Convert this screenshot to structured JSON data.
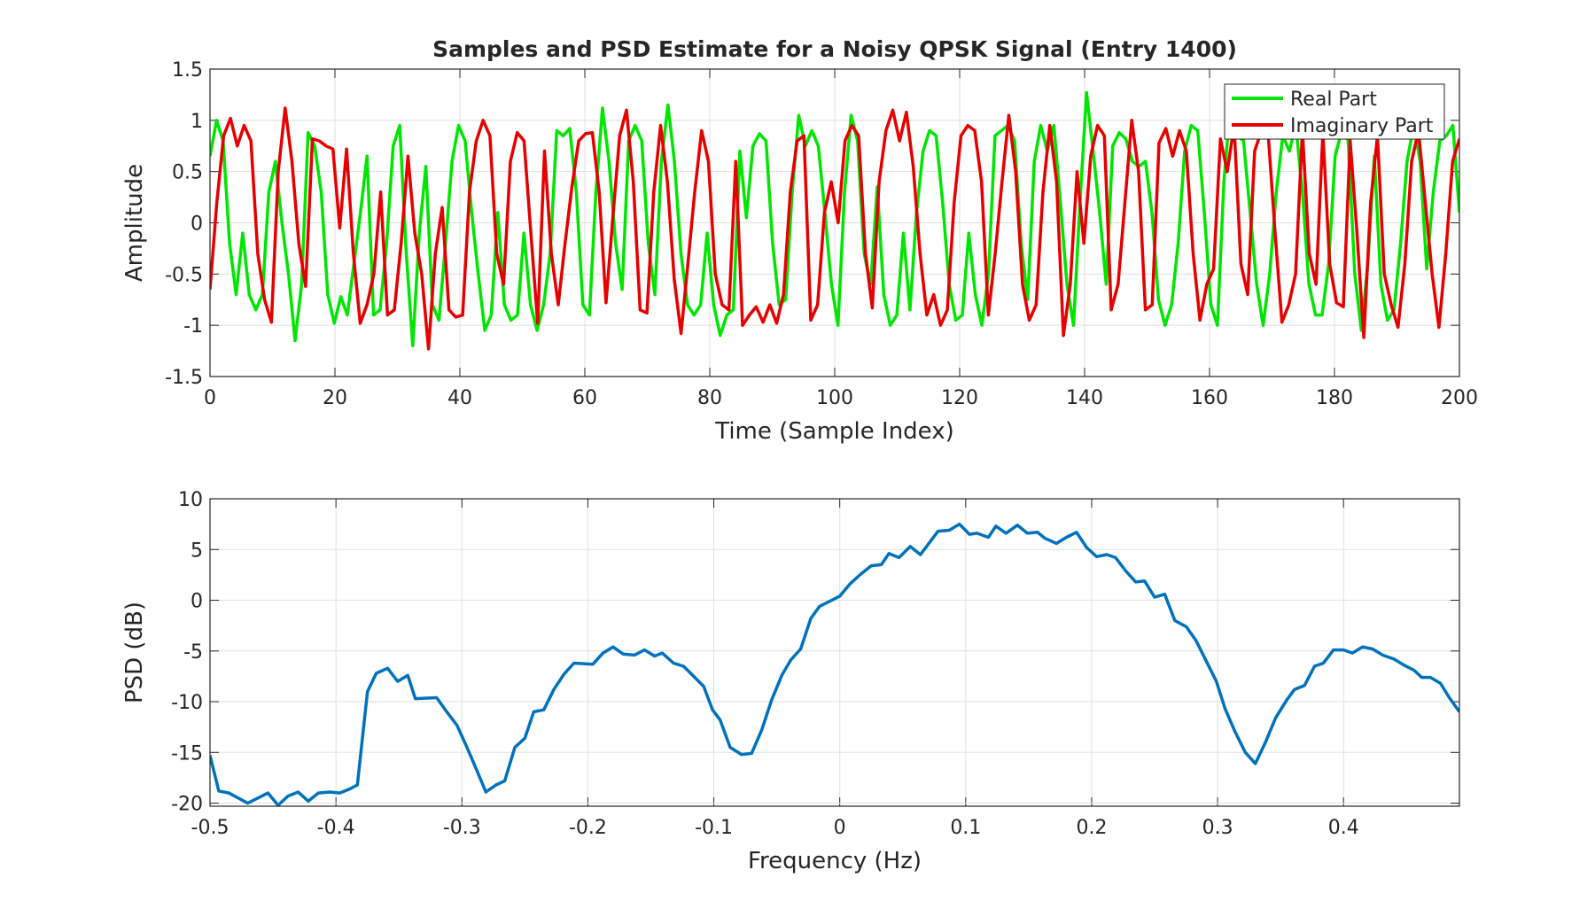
{
  "chart_data": [
    {
      "type": "line",
      "title": "Samples and PSD Estimate for a Noisy QPSK Signal (Entry 1400)",
      "xlabel": "Time (Sample Index)",
      "ylabel": "Amplitude",
      "xlim": [
        0,
        200
      ],
      "ylim": [
        -1.5,
        1.5
      ],
      "xticks": [
        0,
        20,
        40,
        60,
        80,
        100,
        120,
        140,
        160,
        180,
        200
      ],
      "yticks": [
        -1.5,
        -1,
        -0.5,
        0,
        0.5,
        1,
        1.5
      ],
      "grid": true,
      "legend_position": "top-right",
      "series": [
        {
          "name": "Real Part",
          "color": "#00e600",
          "values": [
            0.65,
            1.0,
            0.8,
            -0.2,
            -0.7,
            -0.1,
            -0.7,
            -0.85,
            -0.7,
            0.3,
            0.6,
            0,
            -0.5,
            -1.15,
            -0.6,
            0.88,
            0.75,
            0.3,
            -0.7,
            -0.98,
            -0.72,
            -0.9,
            -0.4,
            0.1,
            0.65,
            -0.9,
            -0.85,
            -0.2,
            0.75,
            0.95,
            -0.3,
            -1.2,
            -0.1,
            0.55,
            -0.8,
            -0.95,
            -0.2,
            0.6,
            0.95,
            0.8,
            0.1,
            -0.5,
            -1.05,
            -0.9,
            0.1,
            -0.8,
            -0.95,
            -0.9,
            -0.1,
            -0.8,
            -1.05,
            -0.8,
            -0.3,
            0.9,
            0.85,
            0.92,
            0.3,
            -0.8,
            -0.9,
            0.3,
            1.12,
            0.6,
            -0.2,
            -0.65,
            0.8,
            0.95,
            0.8,
            -0.2,
            -0.7,
            0.6,
            1.15,
            0.6,
            -0.3,
            -0.8,
            -0.9,
            -0.8,
            -0.1,
            -0.8,
            -1.1,
            -0.9,
            -0.85,
            0.7,
            0.05,
            0.75,
            0.87,
            0.8,
            -0.2,
            -0.8,
            -0.75,
            0.3,
            1.05,
            0.75,
            0.9,
            0.75,
            0.1,
            -0.6,
            -1.0,
            0.3,
            1.05,
            0.8,
            -0.3,
            -0.6,
            0.35,
            -0.7,
            -1.0,
            -0.9,
            -0.1,
            -0.85,
            0.1,
            0.7,
            0.9,
            0.85,
            0.2,
            -0.6,
            -0.95,
            -0.9,
            -0.1,
            -0.7,
            -1.0,
            -0.5,
            0.85,
            0.9,
            0.95,
            0.8,
            -0.2,
            -0.75,
            0.6,
            0.95,
            0.7,
            0.95,
            0.2,
            -0.6,
            -1.0,
            0.2,
            1.27,
            0.7,
            0.1,
            -0.6,
            0.75,
            0.88,
            0.82,
            0.6,
            0.55,
            0.6,
            0.1,
            -0.75,
            -1.0,
            -0.8,
            -0.2,
            0.7,
            0.95,
            0.9,
            0.1,
            -0.8,
            -1.0,
            0.4,
            1.15,
            0.85,
            0.8,
            0.1,
            -0.6,
            -1.0,
            -0.5,
            0.3,
            0.85,
            0.7,
            0.95,
            0.3,
            -0.6,
            -0.9,
            -0.9,
            -0.4,
            0.65,
            0.9,
            0.8,
            -0.5,
            -1.05,
            -0.4,
            0.65,
            -0.6,
            -0.95,
            -0.85,
            -0.2,
            0.6,
            0.95,
            0.6,
            -0.45,
            0.3,
            0.8,
            0.85,
            0.95,
            0.1
          ]
        },
        {
          "name": "Imaginary Part",
          "color": "#e60000",
          "values": [
            -0.65,
            0.2,
            0.85,
            1.02,
            0.75,
            0.95,
            0.8,
            -0.3,
            -0.75,
            -0.97,
            0.5,
            1.12,
            0.6,
            -0.2,
            -0.62,
            0.82,
            0.8,
            0.75,
            0.72,
            -0.05,
            0.72,
            -0.3,
            -0.98,
            -0.8,
            -0.5,
            0.3,
            -0.9,
            -0.85,
            -0.2,
            0.65,
            -0.1,
            -0.5,
            -1.23,
            -0.3,
            0.15,
            -0.85,
            -0.92,
            -0.9,
            0.3,
            0.8,
            1.0,
            0.85,
            -0.3,
            -0.6,
            0.6,
            0.88,
            0.8,
            -0.1,
            -0.98,
            0.7,
            -0.3,
            -0.8,
            -0.2,
            0.35,
            0.8,
            0.87,
            0.88,
            0.3,
            -0.78,
            0.05,
            0.85,
            1.1,
            0.4,
            -0.85,
            -0.88,
            0.3,
            0.95,
            0.4,
            -0.55,
            -1.08,
            -0.4,
            0.3,
            0.9,
            0.6,
            -0.5,
            -0.8,
            -0.85,
            0.6,
            -1.0,
            -0.9,
            -0.82,
            -0.97,
            -0.8,
            -0.98,
            -0.7,
            0.3,
            0.8,
            0.85,
            -0.95,
            -0.8,
            0.1,
            0.4,
            0.0,
            0.8,
            0.95,
            0.85,
            -0.3,
            -0.83,
            0.4,
            0.9,
            1.1,
            0.8,
            1.08,
            0.55,
            -0.3,
            -0.9,
            -0.7,
            -1.0,
            -0.85,
            0.2,
            0.85,
            0.95,
            0.9,
            0.4,
            -0.9,
            -0.3,
            0.4,
            1.05,
            0.5,
            -0.6,
            -0.95,
            -0.8,
            0.3,
            0.95,
            0.4,
            -1.1,
            -0.6,
            0.5,
            -0.2,
            0.65,
            0.95,
            0.85,
            -0.85,
            -0.6,
            0.2,
            1.0,
            0.5,
            -0.85,
            -0.8,
            0.78,
            0.92,
            0.65,
            0.9,
            0.7,
            -0.3,
            -0.95,
            -0.6,
            -0.45,
            0.82,
            0.5,
            0.95,
            -0.4,
            -0.7,
            0.7,
            0.9,
            0.85,
            -0.1,
            -0.97,
            -0.8,
            -0.5,
            0.9,
            -0.3,
            -0.6,
            0.88,
            -0.4,
            -0.78,
            -0.82,
            0.8,
            -0.1,
            -1.12,
            0.2,
            0.85,
            -0.5,
            -0.8,
            -1.02,
            -0.4,
            0.6,
            0.9,
            0.2,
            -0.5,
            -1.02,
            -0.3,
            0.6,
            0.82
          ]
        }
      ]
    },
    {
      "type": "line",
      "title": "",
      "xlabel": "Frequency (Hz)",
      "ylabel": "PSD (dB)",
      "xlim": [
        -0.5,
        0.492
      ],
      "ylim": [
        -20.3,
        10
      ],
      "xticks": [
        -0.5,
        -0.4,
        -0.3,
        -0.2,
        -0.1,
        0,
        0.1,
        0.2,
        0.3,
        0.4
      ],
      "yticks": [
        -20,
        -15,
        -10,
        -5,
        0,
        5,
        10
      ],
      "grid": true,
      "series": [
        {
          "name": "PSD",
          "color": "#0072bd",
          "x": [
            -0.5,
            -0.493,
            -0.485,
            -0.47,
            -0.454,
            -0.446,
            -0.438,
            -0.43,
            -0.422,
            -0.414,
            -0.405,
            -0.397,
            -0.389,
            -0.383,
            -0.375,
            -0.368,
            -0.359,
            -0.351,
            -0.343,
            -0.337,
            -0.32,
            -0.312,
            -0.304,
            -0.296,
            -0.288,
            -0.281,
            -0.273,
            -0.266,
            -0.258,
            -0.25,
            -0.243,
            -0.235,
            -0.227,
            -0.219,
            -0.211,
            -0.196,
            -0.188,
            -0.18,
            -0.172,
            -0.163,
            -0.155,
            -0.147,
            -0.141,
            -0.132,
            -0.124,
            -0.116,
            -0.108,
            -0.101,
            -0.095,
            -0.087,
            -0.078,
            -0.07,
            -0.062,
            -0.054,
            -0.046,
            -0.039,
            -0.031,
            -0.023,
            -0.016,
            -0.008,
            0,
            0.008,
            0.016,
            0.025,
            0.033,
            0.039,
            0.047,
            0.056,
            0.064,
            0.072,
            0.078,
            0.087,
            0.095,
            0.103,
            0.109,
            0.118,
            0.124,
            0.132,
            0.141,
            0.149,
            0.157,
            0.163,
            0.172,
            0.18,
            0.188,
            0.196,
            0.204,
            0.212,
            0.219,
            0.227,
            0.235,
            0.242,
            0.25,
            0.258,
            0.266,
            0.275,
            0.283,
            0.291,
            0.299,
            0.306,
            0.314,
            0.322,
            0.33,
            0.338,
            0.346,
            0.355,
            0.361,
            0.369,
            0.377,
            0.384,
            0.392,
            0.4,
            0.407,
            0.415,
            0.423,
            0.431,
            0.44,
            0.448,
            0.456,
            0.462,
            0.469,
            0.477,
            0.484,
            0.492
          ],
          "values": [
            -15.3,
            -18.8,
            -19,
            -20,
            -19,
            -20.2,
            -19.3,
            -18.9,
            -19.8,
            -19,
            -18.9,
            -19,
            -18.6,
            -18.2,
            -9,
            -7.2,
            -6.7,
            -8,
            -7.4,
            -9.7,
            -9.6,
            -11,
            -12.3,
            -14.5,
            -16.8,
            -18.9,
            -18.2,
            -17.8,
            -14.5,
            -13.6,
            -11,
            -10.8,
            -8.8,
            -7.3,
            -6.2,
            -6.3,
            -5.2,
            -4.6,
            -5.3,
            -5.4,
            -4.9,
            -5.5,
            -5.2,
            -6.2,
            -6.5,
            -7.5,
            -8.5,
            -10.8,
            -11.8,
            -14.5,
            -15.2,
            -15.1,
            -12.8,
            -9.8,
            -7.4,
            -5.9,
            -4.8,
            -1.8,
            -0.6,
            -0.1,
            0.4,
            1.6,
            2.5,
            3.4,
            3.5,
            4.6,
            4.2,
            5.3,
            4.5,
            5.8,
            6.8,
            6.9,
            7.5,
            6.5,
            6.6,
            6.2,
            7.3,
            6.6,
            7.4,
            6.6,
            6.7,
            6.1,
            5.6,
            6.2,
            6.7,
            5.2,
            4.3,
            4.5,
            4.2,
            2.9,
            1.8,
            1.9,
            0.3,
            0.6,
            -2,
            -2.6,
            -4,
            -6,
            -8,
            -10.7,
            -13,
            -15,
            -16.1,
            -14,
            -11.6,
            -9.8,
            -8.8,
            -8.4,
            -6.5,
            -6.2,
            -4.9,
            -4.9,
            -5.2,
            -4.6,
            -4.8,
            -5.4,
            -5.8,
            -6.4,
            -6.9,
            -7.6,
            -7.6,
            -8.2,
            -9.6,
            -11
          ]
        }
      ]
    }
  ]
}
